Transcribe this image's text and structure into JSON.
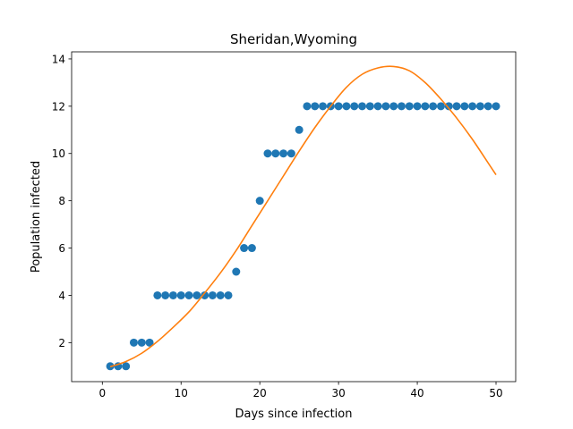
{
  "chart_data": {
    "type": "scatter",
    "title": "Sheridan,Wyoming",
    "xlabel": "Days since infection",
    "ylabel": "Population infected",
    "xlim": [
      -3.9,
      52.5
    ],
    "ylim": [
      0.35,
      14.3
    ],
    "xticks": [
      0,
      10,
      20,
      30,
      40,
      50
    ],
    "yticks": [
      2,
      4,
      6,
      8,
      10,
      12,
      14
    ],
    "grid": false,
    "series": [
      {
        "type": "scatter",
        "color": "#1f77b4",
        "x": [
          1,
          2,
          3,
          4,
          5,
          6,
          7,
          8,
          9,
          10,
          11,
          12,
          13,
          14,
          15,
          16,
          17,
          18,
          19,
          20,
          21,
          22,
          23,
          24,
          25,
          26,
          27,
          28,
          29,
          30,
          31,
          32,
          33,
          34,
          35,
          36,
          37,
          38,
          39,
          40,
          41,
          42,
          43,
          44,
          45,
          46,
          47,
          48,
          49,
          50
        ],
        "y": [
          1,
          1,
          1,
          2,
          2,
          2,
          4,
          4,
          4,
          4,
          4,
          4,
          4,
          4,
          4,
          4,
          5,
          6,
          6,
          8,
          10,
          10,
          10,
          10,
          11,
          12,
          12,
          12,
          12,
          12,
          12,
          12,
          12,
          12,
          12,
          12,
          12,
          12,
          12,
          12,
          12,
          12,
          12,
          12,
          12,
          12,
          12,
          12,
          12,
          12
        ]
      },
      {
        "type": "line",
        "color": "#ff7f0e",
        "x": [
          1,
          3,
          5,
          7,
          9,
          11,
          13,
          15,
          17,
          19,
          21,
          23,
          25,
          27,
          29,
          31,
          33,
          35,
          37,
          39,
          41,
          43,
          45,
          47,
          49,
          50
        ],
        "y": [
          0.98,
          1.2,
          1.55,
          2.05,
          2.65,
          3.3,
          4.1,
          4.95,
          5.9,
          6.95,
          8.0,
          9.05,
          10.1,
          11.1,
          12.0,
          12.8,
          13.35,
          13.62,
          13.68,
          13.5,
          13.0,
          12.3,
          11.5,
          10.6,
          9.6,
          9.1
        ]
      }
    ]
  }
}
